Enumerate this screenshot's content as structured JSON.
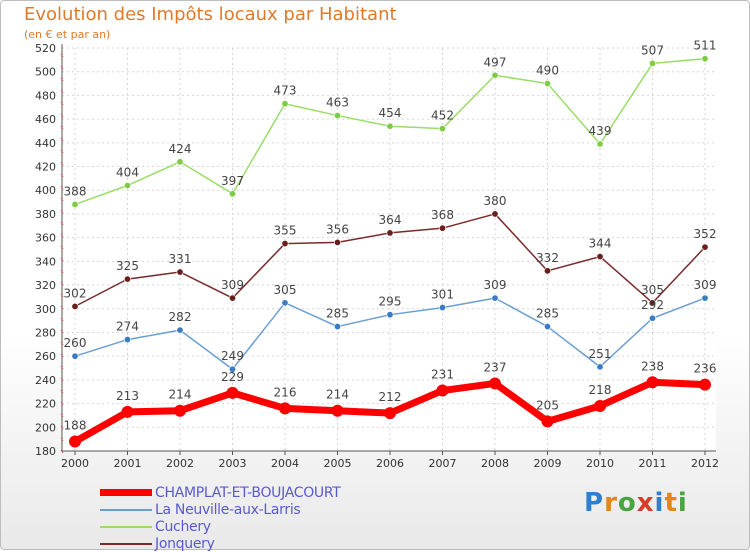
{
  "header": {
    "title": "Evolution des Impôts locaux par Habitant",
    "subtitle": "(en € et par an)"
  },
  "logo": {
    "text": "Proxiti",
    "colors": [
      "#2f7fd1",
      "#e5831c",
      "#4aa43f",
      "#d93b2a",
      "#2f7fd1",
      "#e5831c",
      "#4aa43f"
    ]
  },
  "chart_data": {
    "type": "line",
    "title": "Evolution des Impôts locaux par Habitant",
    "subtitle": "(en € et par an)",
    "xlabel": "",
    "ylabel": "",
    "x": [
      "2000",
      "2001",
      "2002",
      "2003",
      "2004",
      "2005",
      "2006",
      "2007",
      "2008",
      "2009",
      "2010",
      "2011",
      "2012"
    ],
    "ylim": [
      180,
      520
    ],
    "yticks": [
      180,
      200,
      220,
      240,
      260,
      280,
      300,
      320,
      340,
      360,
      380,
      400,
      420,
      440,
      460,
      480,
      500,
      520
    ],
    "grid": true,
    "legend_position": "bottom-left",
    "series": [
      {
        "name": "CHAMPLAT-ET-BOUJACOURT",
        "color": "#ff0000",
        "width": 7,
        "values": [
          188,
          213,
          214,
          229,
          216,
          214,
          212,
          231,
          237,
          205,
          218,
          238,
          236
        ]
      },
      {
        "name": "La Neuville-aux-Larris",
        "color": "#6b9fd4",
        "width": 1.5,
        "values": [
          260,
          274,
          282,
          249,
          305,
          285,
          295,
          301,
          309,
          285,
          251,
          292,
          309
        ]
      },
      {
        "name": "Cuchery",
        "color": "#99dd66",
        "width": 1.5,
        "values": [
          388,
          404,
          424,
          397,
          473,
          463,
          454,
          452,
          497,
          490,
          439,
          507,
          511
        ]
      },
      {
        "name": "Jonquery",
        "color": "#7a2a2a",
        "width": 1.5,
        "values": [
          302,
          325,
          331,
          309,
          355,
          356,
          364,
          368,
          380,
          332,
          344,
          305,
          352
        ]
      }
    ],
    "data_labels": [
      [
        "188",
        "213",
        "214",
        "229",
        "216",
        "214",
        "212",
        "231",
        "237",
        "205",
        "218",
        "238",
        "236"
      ],
      [
        "260",
        "274",
        "282",
        "249",
        "305",
        "285",
        "295",
        "301",
        "309",
        "285",
        "251",
        "292",
        "309"
      ],
      [
        "388",
        "404",
        "424",
        "397",
        "473",
        "463",
        "454",
        "452",
        "497",
        "490",
        "439",
        "507",
        "511"
      ],
      [
        "302",
        "325",
        "331",
        "309",
        "355",
        "356",
        "364",
        "368",
        "380",
        "332",
        "344",
        "305",
        "352"
      ]
    ]
  }
}
